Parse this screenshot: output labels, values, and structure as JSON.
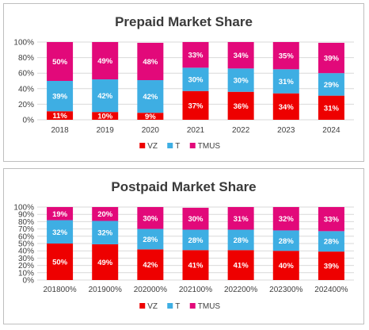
{
  "colors": {
    "VZ": "#ee0000",
    "T": "#3eaee3",
    "TMUS": "#e2097a"
  },
  "chart_data": [
    {
      "type": "bar",
      "stacked": true,
      "title": "Prepaid Market Share",
      "categories": [
        "2018",
        "2019",
        "2020",
        "2021",
        "2022",
        "2023",
        "2024"
      ],
      "series": [
        {
          "name": "VZ",
          "values": [
            11,
            10,
            9,
            37,
            36,
            34,
            31
          ],
          "labels": [
            "11%",
            "10%",
            "9%",
            "37%",
            "36%",
            "34%",
            "31%"
          ]
        },
        {
          "name": "T",
          "values": [
            39,
            42,
            42,
            30,
            30,
            31,
            29
          ],
          "labels": [
            "39%",
            "42%",
            "42%",
            "30%",
            "30%",
            "31%",
            "29%"
          ]
        },
        {
          "name": "TMUS",
          "values": [
            50,
            49,
            48,
            33,
            34,
            35,
            39
          ],
          "labels": [
            "50%",
            "49%",
            "48%",
            "33%",
            "34%",
            "35%",
            "39%"
          ]
        }
      ],
      "ylim": [
        0,
        100
      ],
      "yticks": [
        "0%",
        "20%",
        "40%",
        "60%",
        "80%",
        "100%"
      ],
      "grid": true,
      "legend_position": "bottom"
    },
    {
      "type": "bar",
      "stacked": true,
      "title": "Postpaid Market Share",
      "categories": [
        "201800%",
        "201900%",
        "202000%",
        "202100%",
        "202200%",
        "202300%",
        "202400%"
      ],
      "series": [
        {
          "name": "VZ",
          "values": [
            50,
            49,
            42,
            41,
            41,
            40,
            39
          ],
          "labels": [
            "50%",
            "49%",
            "42%",
            "41%",
            "41%",
            "40%",
            "39%"
          ]
        },
        {
          "name": "T",
          "values": [
            32,
            32,
            28,
            28,
            28,
            28,
            28
          ],
          "labels": [
            "32%",
            "32%",
            "28%",
            "28%",
            "28%",
            "28%",
            "28%"
          ]
        },
        {
          "name": "TMUS",
          "values": [
            19,
            20,
            30,
            30,
            31,
            32,
            33
          ],
          "labels": [
            "19%",
            "20%",
            "30%",
            "30%",
            "31%",
            "32%",
            "33%"
          ]
        }
      ],
      "ylim": [
        0,
        100
      ],
      "yticks": [
        "0%",
        "10%",
        "20%",
        "30%",
        "40%",
        "50%",
        "60%",
        "70%",
        "80%",
        "90%",
        "100%"
      ],
      "grid": true,
      "legend_position": "bottom"
    }
  ]
}
